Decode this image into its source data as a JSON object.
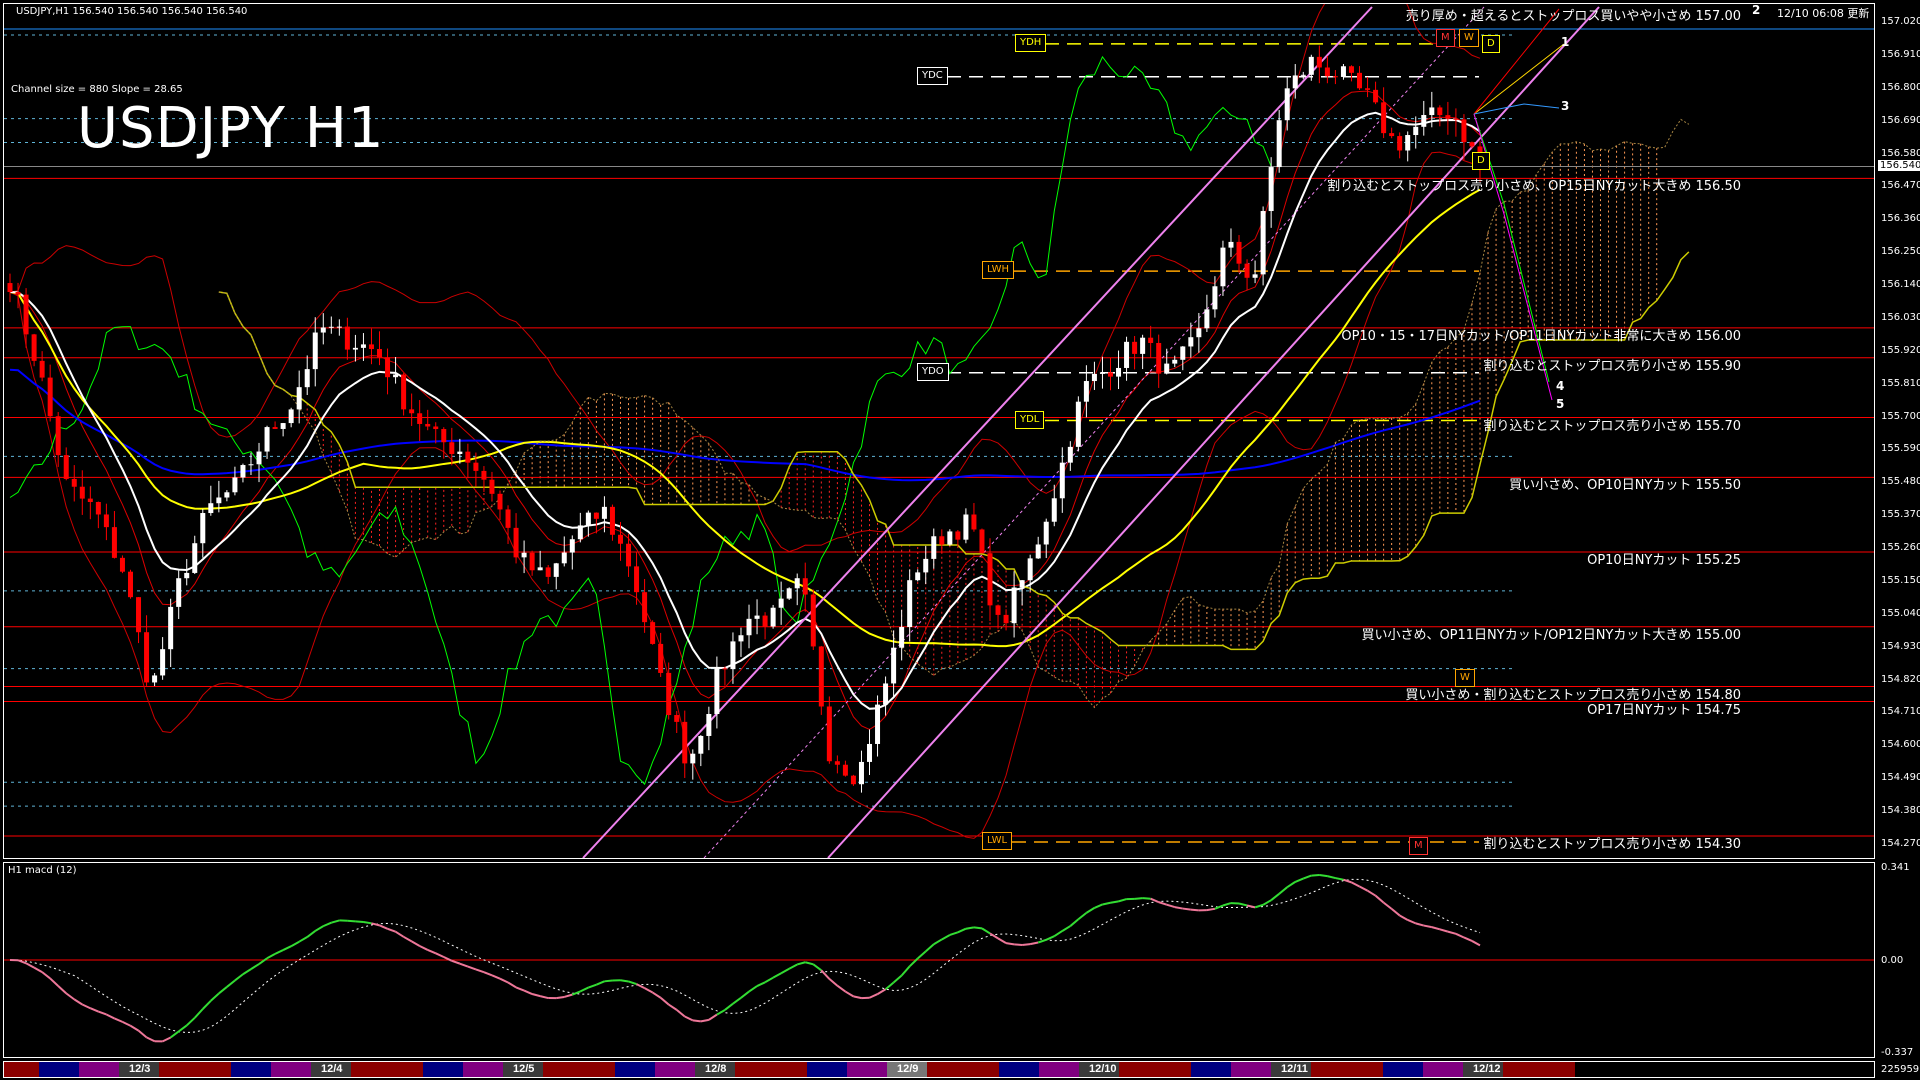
{
  "header": {
    "symbol_info": "USDJPY,H1  156.540 156.540 156.540 156.540",
    "channel_info": "Channel size = 880 Slope = 28.65",
    "big_title": "USDJPY H1",
    "updated": "12/10 06:08 更新"
  },
  "colors": {
    "background": "#000000",
    "level_line": "#ff0000",
    "bull_candle": "#ffffff",
    "bear_candle": "#ff0000",
    "channel": "#ee82ee",
    "ma_fast": "#ffffff",
    "ma_mid": "#ffff00",
    "ma_slow": "#0000ff",
    "chikou": "#00ff00",
    "macd_up": "#33dd33",
    "macd_down": "#ee7799"
  },
  "price_axis": {
    "ticks": [
      "157.020",
      "156.910",
      "156.800",
      "156.690",
      "156.580",
      "156.470",
      "156.360",
      "156.250",
      "156.140",
      "156.030",
      "155.920",
      "155.810",
      "155.700",
      "155.590",
      "155.480",
      "155.370",
      "155.260",
      "155.150",
      "155.040",
      "154.930",
      "154.820",
      "154.710",
      "154.600",
      "154.490",
      "154.380",
      "154.270"
    ],
    "current": "156.540"
  },
  "annotations": [
    {
      "price": 157.0,
      "text": "売り厚め・超えるとストップロス買いやや小さめ 157.00"
    },
    {
      "price": 156.5,
      "text": "割り込むとストップロス売り小さめ、OP15日NYカット大きめ 156.50"
    },
    {
      "price": 156.0,
      "text": "OP10・15・17日NYカット/OP11日NYカット非常に大きめ 156.00"
    },
    {
      "price": 155.9,
      "text": "割り込むとストップロス売り小さめ 155.90"
    },
    {
      "price": 155.7,
      "text": "割り込むとストップロス売り小さめ 155.70"
    },
    {
      "price": 155.5,
      "text": "買い小さめ、OP10日NYカット 155.50"
    },
    {
      "price": 155.25,
      "text": "OP10日NYカット 155.25"
    },
    {
      "price": 155.0,
      "text": "買い小さめ、OP11日NYカット/OP12日NYカット大きめ 155.00"
    },
    {
      "price": 154.8,
      "text": "買い小さめ・割り込むとストップロス売り小さめ 154.80"
    },
    {
      "price": 154.75,
      "text": "OP17日NYカット 154.75"
    },
    {
      "price": 154.3,
      "text": "割り込むとストップロス売り小さめ 154.30"
    }
  ],
  "levels": [
    {
      "label": "YDH",
      "price": 156.95,
      "color": "#ffff00"
    },
    {
      "label": "YDC",
      "price": 156.84,
      "color": "#ffffff"
    },
    {
      "label": "LWH",
      "price": 156.19,
      "color": "#ffa500"
    },
    {
      "label": "YDO",
      "price": 155.85,
      "color": "#ffffff"
    },
    {
      "label": "YDL",
      "price": 155.69,
      "color": "#ffff00"
    },
    {
      "label": "LWL",
      "price": 154.28,
      "color": "#ffa500"
    }
  ],
  "markers": {
    "m": "M",
    "w": "W",
    "d": "D"
  },
  "projection_labels": [
    "1",
    "2",
    "3",
    "4",
    "5"
  ],
  "macd": {
    "title": "H1  macd (12)",
    "max": "0.341",
    "zero": "0.00",
    "min": "-0.337",
    "volume": "225959"
  },
  "time_axis": {
    "days": [
      "12/3",
      "12/4",
      "12/5",
      "12/8",
      "12/9",
      "12/10",
      "12/11",
      "12/12"
    ]
  },
  "chart_data": {
    "type": "candlestick",
    "title": "USDJPY H1",
    "ylim": [
      154.27,
      157.02
    ],
    "close_path": [
      156.16,
      155.87,
      155.47,
      155.39,
      155.19,
      154.78,
      155.15,
      155.39,
      155.47,
      155.63,
      155.75,
      156.0,
      155.96,
      155.92,
      155.75,
      155.63,
      155.59,
      155.47,
      155.23,
      155.15,
      155.31,
      155.39,
      155.19,
      154.82,
      154.54,
      154.82,
      155.03,
      155.03,
      155.15,
      154.58,
      154.5,
      154.82,
      155.19,
      155.31,
      155.35,
      154.99,
      155.19,
      155.47,
      155.8,
      155.88,
      155.96,
      155.84,
      155.96,
      156.28,
      156.16,
      156.77,
      156.89,
      156.85,
      156.77,
      156.61,
      156.69,
      156.73,
      156.54
    ]
  }
}
